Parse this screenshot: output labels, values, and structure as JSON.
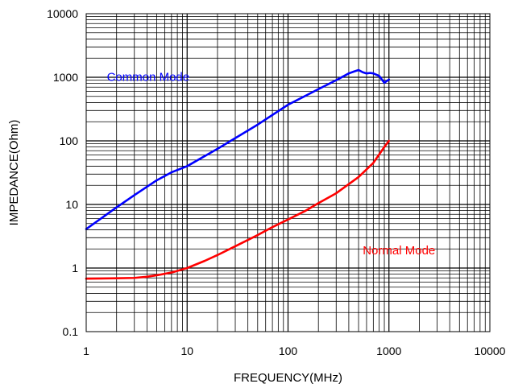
{
  "chart_data": {
    "type": "line",
    "title": "",
    "xlabel": "FREQUENCY(MHz)",
    "ylabel": "IMPEDANCE(Ohm)",
    "x_scale": "log",
    "y_scale": "log",
    "xlim": [
      1,
      10000
    ],
    "ylim": [
      0.1,
      10000
    ],
    "grid": true,
    "x_ticks": [
      {
        "value": 1,
        "label": "1"
      },
      {
        "value": 10,
        "label": "10"
      },
      {
        "value": 100,
        "label": "100"
      },
      {
        "value": 1000,
        "label": "1000"
      },
      {
        "value": 10000,
        "label": "10000"
      }
    ],
    "y_ticks": [
      {
        "value": 0.1,
        "label": "0.1"
      },
      {
        "value": 1,
        "label": "1"
      },
      {
        "value": 10,
        "label": "10"
      },
      {
        "value": 100,
        "label": "100"
      },
      {
        "value": 1000,
        "label": "1000"
      },
      {
        "value": 10000,
        "label": "10000"
      }
    ],
    "series": [
      {
        "name": "Common Mode",
        "color": "#0000ff",
        "label_at": [
          1.6,
          880
        ],
        "x": [
          1,
          1.5,
          2,
          3,
          5,
          7,
          10,
          20,
          50,
          100,
          200,
          300,
          400,
          450,
          500,
          550,
          600,
          650,
          700,
          800,
          900,
          1000
        ],
        "y": [
          4.1,
          6.5,
          9,
          14,
          24,
          32,
          40,
          75,
          180,
          370,
          650,
          900,
          1150,
          1230,
          1300,
          1200,
          1150,
          1170,
          1150,
          1050,
          820,
          920
        ]
      },
      {
        "name": "Normal Mode",
        "color": "#ff0000",
        "label_at": [
          550,
          1.65
        ],
        "x": [
          1,
          2,
          3,
          4,
          5,
          7,
          10,
          15,
          20,
          30,
          50,
          70,
          100,
          150,
          200,
          300,
          500,
          700,
          900,
          1000
        ],
        "y": [
          0.68,
          0.69,
          0.7,
          0.73,
          0.77,
          0.85,
          1.0,
          1.3,
          1.6,
          2.2,
          3.3,
          4.4,
          5.8,
          8,
          10.5,
          15,
          27,
          45,
          80,
          100
        ]
      }
    ]
  }
}
